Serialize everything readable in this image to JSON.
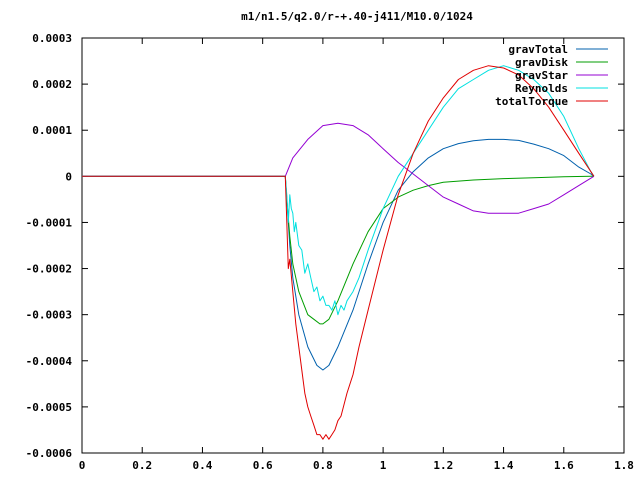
{
  "chart_data": {
    "type": "line",
    "title": "m1/n1.5/q2.0/r-+.40-j411/M10.0/1024",
    "xlabel": "",
    "ylabel": "",
    "xlim": [
      0,
      1.8
    ],
    "ylim": [
      -0.0006,
      0.0003
    ],
    "xticks": [
      "0",
      "0.2",
      "0.4",
      "0.6",
      "0.8",
      "1",
      "1.2",
      "1.4",
      "1.6",
      "1.8"
    ],
    "yticks": [
      "0.0003",
      "0.0002",
      "0.0001",
      "0",
      "-0.0001",
      "-0.0002",
      "-0.0003",
      "-0.0004",
      "-0.0005",
      "-0.0006"
    ],
    "grid": false,
    "legend_position": "top-right",
    "series": [
      {
        "name": "gravTotal",
        "color": "#0060ad",
        "x": [
          0,
          0.675,
          0.68,
          0.69,
          0.7,
          0.72,
          0.75,
          0.78,
          0.8,
          0.82,
          0.85,
          0.9,
          0.95,
          1.0,
          1.05,
          1.1,
          1.15,
          1.2,
          1.25,
          1.3,
          1.35,
          1.4,
          1.45,
          1.5,
          1.55,
          1.6,
          1.65,
          1.69,
          1.7
        ],
        "y": [
          0,
          0,
          -5e-05,
          -0.00015,
          -0.00022,
          -0.0003,
          -0.00037,
          -0.00041,
          -0.00042,
          -0.00041,
          -0.00037,
          -0.00029,
          -0.00019,
          -0.0001,
          -3e-05,
          1e-05,
          4e-05,
          6e-05,
          7.1e-05,
          7.7e-05,
          8e-05,
          8e-05,
          7.8e-05,
          7e-05,
          6e-05,
          4.5e-05,
          2e-05,
          5e-06,
          0
        ]
      },
      {
        "name": "gravDisk",
        "color": "#009e00",
        "x": [
          0,
          0.675,
          0.68,
          0.69,
          0.7,
          0.72,
          0.75,
          0.77,
          0.79,
          0.8,
          0.82,
          0.85,
          0.9,
          0.95,
          1.0,
          1.05,
          1.1,
          1.15,
          1.2,
          1.3,
          1.4,
          1.5,
          1.6,
          1.69,
          1.7
        ],
        "y": [
          0,
          0,
          -5e-05,
          -0.00013,
          -0.00019,
          -0.00025,
          -0.0003,
          -0.00031,
          -0.00032,
          -0.00032,
          -0.00031,
          -0.00027,
          -0.00019,
          -0.00012,
          -7e-05,
          -4.5e-05,
          -3e-05,
          -2e-05,
          -1.3e-05,
          -8e-06,
          -5e-06,
          -3e-06,
          -1e-06,
          0,
          0
        ]
      },
      {
        "name": "gravStar",
        "color": "#9400d3",
        "x": [
          0,
          0.675,
          0.7,
          0.75,
          0.8,
          0.85,
          0.9,
          0.95,
          1.0,
          1.05,
          1.1,
          1.15,
          1.2,
          1.25,
          1.3,
          1.35,
          1.4,
          1.45,
          1.5,
          1.55,
          1.6,
          1.65,
          1.7
        ],
        "y": [
          0,
          0,
          4e-05,
          8e-05,
          0.00011,
          0.000115,
          0.00011,
          9e-05,
          6e-05,
          3e-05,
          5e-06,
          -2e-05,
          -4.5e-05,
          -6e-05,
          -7.5e-05,
          -8e-05,
          -8e-05,
          -8e-05,
          -7e-05,
          -6e-05,
          -4e-05,
          -2e-05,
          0
        ]
      },
      {
        "name": "Reynolds",
        "color": "#00e0e0",
        "x": [
          0,
          0.675,
          0.68,
          0.685,
          0.69,
          0.695,
          0.7,
          0.705,
          0.71,
          0.72,
          0.73,
          0.74,
          0.75,
          0.76,
          0.77,
          0.78,
          0.79,
          0.8,
          0.81,
          0.82,
          0.83,
          0.84,
          0.85,
          0.86,
          0.87,
          0.88,
          0.9,
          0.92,
          0.95,
          1.0,
          1.05,
          1.1,
          1.15,
          1.2,
          1.25,
          1.3,
          1.35,
          1.4,
          1.45,
          1.5,
          1.55,
          1.6,
          1.65,
          1.69,
          1.7
        ],
        "y": [
          0,
          0,
          -4e-05,
          -0.0001,
          -4e-05,
          -7e-05,
          -8e-05,
          -0.00012,
          -0.0001,
          -0.00015,
          -0.00016,
          -0.00021,
          -0.00019,
          -0.00022,
          -0.00025,
          -0.00024,
          -0.00027,
          -0.00026,
          -0.00028,
          -0.00028,
          -0.00029,
          -0.00027,
          -0.0003,
          -0.00028,
          -0.00029,
          -0.00027,
          -0.00025,
          -0.00022,
          -0.00016,
          -7e-05,
          0.0,
          5e-05,
          0.0001,
          0.00015,
          0.00019,
          0.00021,
          0.00023,
          0.00024,
          0.00023,
          0.00021,
          0.00018,
          0.00013,
          6e-05,
          1e-05,
          0
        ]
      },
      {
        "name": "totalTorque",
        "color": "#e00000",
        "x": [
          0,
          0.675,
          0.68,
          0.685,
          0.69,
          0.7,
          0.71,
          0.72,
          0.73,
          0.74,
          0.75,
          0.76,
          0.77,
          0.78,
          0.79,
          0.8,
          0.81,
          0.82,
          0.83,
          0.84,
          0.85,
          0.86,
          0.88,
          0.9,
          0.92,
          0.95,
          1.0,
          1.05,
          1.1,
          1.15,
          1.2,
          1.25,
          1.3,
          1.35,
          1.4,
          1.45,
          1.5,
          1.55,
          1.6,
          1.65,
          1.69,
          1.7
        ],
        "y": [
          0,
          0,
          -0.0001,
          -0.0002,
          -0.00018,
          -0.00025,
          -0.00032,
          -0.00037,
          -0.00042,
          -0.00047,
          -0.0005,
          -0.00052,
          -0.00054,
          -0.00056,
          -0.00056,
          -0.00057,
          -0.00056,
          -0.00057,
          -0.00056,
          -0.00055,
          -0.00053,
          -0.00052,
          -0.00047,
          -0.00043,
          -0.00037,
          -0.00029,
          -0.00016,
          -4e-05,
          5e-05,
          0.00012,
          0.00017,
          0.00021,
          0.00023,
          0.00024,
          0.000235,
          0.00022,
          0.00019,
          0.00015,
          0.0001,
          5e-05,
          1e-05,
          0
        ]
      }
    ]
  }
}
